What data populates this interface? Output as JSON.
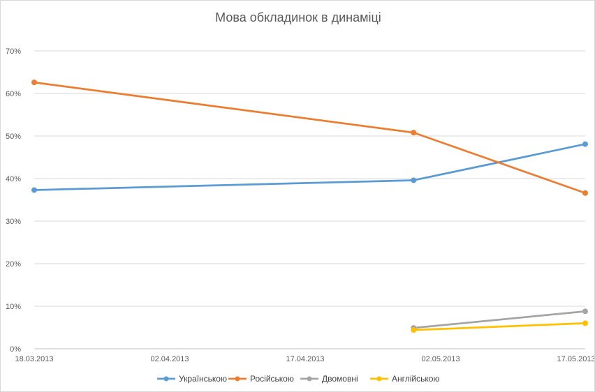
{
  "chart_data": {
    "type": "line",
    "title": "Мова обкладинок в динаміці",
    "xlabel": "",
    "ylabel": "",
    "x_ticks": [
      "18.03.2013",
      "02.04.2013",
      "17.04.2013",
      "02.05.2013",
      "17.05.2013"
    ],
    "x_tick_values": [
      "2013-03-18",
      "2013-04-02",
      "2013-04-17",
      "2013-05-02",
      "2013-05-17"
    ],
    "xlim": [
      "2013-03-18",
      "2013-05-18"
    ],
    "y_ticks": [
      "0%",
      "10%",
      "20%",
      "30%",
      "40%",
      "50%",
      "60%",
      "70%"
    ],
    "ylim": [
      0,
      70
    ],
    "grid": true,
    "legend_position": "bottom",
    "series": [
      {
        "name": "Українською",
        "color": "#5b9bd5",
        "points": [
          {
            "x": "2013-03-18",
            "y": 37.3
          },
          {
            "x": "2013-04-29",
            "y": 39.6
          },
          {
            "x": "2013-05-18",
            "y": 48.1
          }
        ]
      },
      {
        "name": "Російською",
        "color": "#ed7d31",
        "points": [
          {
            "x": "2013-03-18",
            "y": 62.6
          },
          {
            "x": "2013-04-29",
            "y": 50.8
          },
          {
            "x": "2013-05-18",
            "y": 36.6
          }
        ]
      },
      {
        "name": "Двомовні",
        "color": "#a5a5a5",
        "points": [
          {
            "x": "2013-04-29",
            "y": 4.9
          },
          {
            "x": "2013-05-18",
            "y": 8.8
          }
        ]
      },
      {
        "name": "Англійською",
        "color": "#ffc000",
        "points": [
          {
            "x": "2013-04-29",
            "y": 4.4
          },
          {
            "x": "2013-05-18",
            "y": 6.0
          }
        ]
      }
    ]
  }
}
